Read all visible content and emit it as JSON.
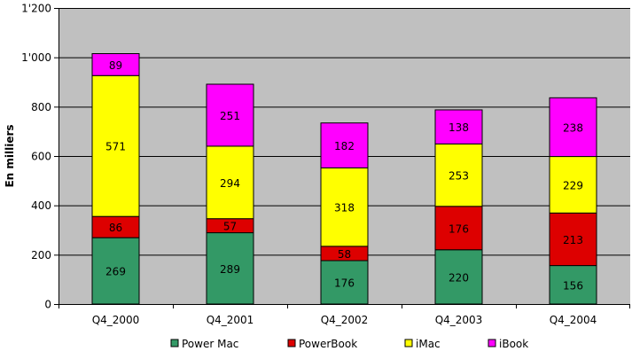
{
  "chart_data": {
    "type": "bar",
    "stacked": true,
    "title": "",
    "xlabel": "",
    "ylabel": "En milliers",
    "ylim": [
      0,
      1200
    ],
    "yticks": [
      0,
      200,
      400,
      600,
      800,
      1000,
      1200
    ],
    "ytick_labels": [
      "0",
      "200",
      "400",
      "600",
      "800",
      "1'000",
      "1'200"
    ],
    "grid": true,
    "legend_position": "bottom",
    "categories": [
      "Q4_2000",
      "Q4_2001",
      "Q4_2002",
      "Q4_2003",
      "Q4_2004"
    ],
    "series": [
      {
        "name": "Power Mac",
        "color": "#339966",
        "values": [
          269,
          289,
          176,
          220,
          156
        ]
      },
      {
        "name": "PowerBook",
        "color": "#dd0000",
        "values": [
          86,
          57,
          58,
          176,
          213
        ]
      },
      {
        "name": "iMac",
        "color": "#ffff00",
        "values": [
          571,
          294,
          318,
          253,
          229
        ]
      },
      {
        "name": "iBook",
        "color": "#ff00ff",
        "values": [
          89,
          251,
          182,
          138,
          238
        ]
      }
    ],
    "plot_background": "#c0c0c0"
  }
}
